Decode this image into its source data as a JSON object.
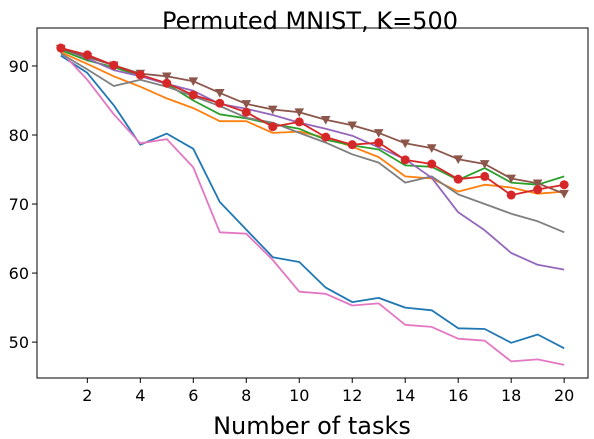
{
  "chart_data": {
    "type": "line",
    "title": "Permuted MNIST, K=500",
    "xlabel": "Number of tasks",
    "ylabel": "",
    "xlim": [
      0.1,
      20.9
    ],
    "ylim": [
      44.8,
      95.5
    ],
    "xticks": [
      2,
      4,
      6,
      8,
      10,
      12,
      14,
      16,
      18,
      20
    ],
    "yticks": [
      50,
      60,
      70,
      80,
      90
    ],
    "grid": false,
    "x": [
      1,
      2,
      3,
      4,
      5,
      6,
      7,
      8,
      9,
      10,
      11,
      12,
      13,
      14,
      15,
      16,
      17,
      18,
      19,
      20
    ],
    "series": [
      {
        "color": "#1f77b4",
        "marker": "none",
        "values": [
          91.5,
          89.0,
          84.3,
          78.6,
          80.2,
          78.0,
          70.3,
          66.3,
          62.3,
          61.6,
          57.9,
          55.8,
          56.4,
          55.0,
          54.6,
          52.0,
          51.9,
          49.9,
          51.1,
          49.1
        ]
      },
      {
        "color": "#e377c2",
        "marker": "none",
        "values": [
          92.1,
          88.0,
          83.0,
          78.8,
          79.4,
          75.3,
          65.9,
          65.7,
          61.9,
          57.3,
          57.0,
          55.3,
          55.6,
          52.5,
          52.2,
          50.5,
          50.2,
          47.2,
          47.5,
          46.7
        ]
      },
      {
        "color": "#ff7f0e",
        "marker": "none",
        "values": [
          92.0,
          90.3,
          88.5,
          87.0,
          85.3,
          83.9,
          82.0,
          82.0,
          80.3,
          80.5,
          79.6,
          78.3,
          76.8,
          74.0,
          73.7,
          71.8,
          72.8,
          72.4,
          71.5,
          71.8
        ]
      },
      {
        "color": "#2ca02c",
        "marker": "none",
        "values": [
          92.3,
          90.8,
          89.8,
          88.6,
          87.4,
          85.0,
          83.0,
          82.4,
          81.6,
          80.9,
          79.3,
          78.5,
          77.9,
          75.6,
          75.4,
          73.5,
          75.2,
          73.1,
          72.8,
          74.0
        ]
      },
      {
        "color": "#7f7f7f",
        "marker": "none",
        "values": [
          91.8,
          89.5,
          87.1,
          88.0,
          87.0,
          85.6,
          84.2,
          82.5,
          81.8,
          80.3,
          78.9,
          77.2,
          76.0,
          73.1,
          74.0,
          71.4,
          70.0,
          68.6,
          67.5,
          65.9
        ]
      },
      {
        "color": "#9467bd",
        "marker": "none",
        "values": [
          92.6,
          91.1,
          89.4,
          88.5,
          87.4,
          86.4,
          84.5,
          83.8,
          82.9,
          81.8,
          80.9,
          79.9,
          78.2,
          76.5,
          73.8,
          68.8,
          66.2,
          62.9,
          61.2,
          60.5
        ]
      },
      {
        "color": "#8c564b",
        "marker": "triangle-down",
        "values": [
          92.5,
          91.3,
          90.1,
          88.9,
          88.5,
          87.8,
          86.1,
          84.5,
          83.7,
          83.3,
          82.2,
          81.4,
          80.3,
          78.8,
          78.1,
          76.5,
          75.8,
          73.7,
          73.0,
          71.5
        ]
      },
      {
        "color": "#d62728",
        "marker": "circle",
        "values": [
          92.6,
          91.6,
          90.1,
          88.7,
          87.5,
          85.8,
          84.6,
          83.3,
          81.2,
          81.9,
          79.7,
          78.6,
          78.9,
          76.4,
          75.8,
          73.6,
          74.0,
          71.3,
          72.1,
          72.8
        ]
      }
    ]
  }
}
